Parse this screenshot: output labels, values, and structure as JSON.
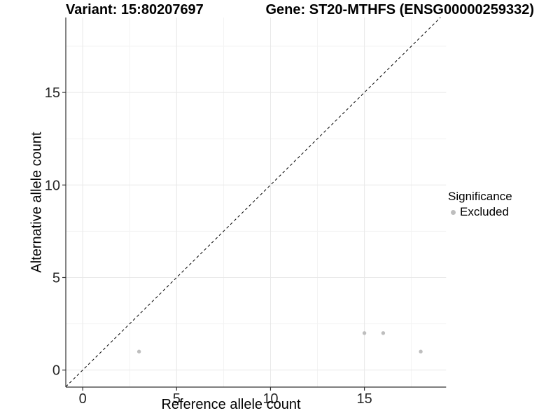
{
  "figure": {
    "title_left": "Variant: 15:80207697",
    "title_right": "Gene: ST20-MTHFS (ENSG00000259332)"
  },
  "chart_data": {
    "type": "scatter",
    "xlabel": "Reference allele count",
    "ylabel": "Alternative allele count",
    "xlim": [
      -0.9,
      19.35
    ],
    "ylim": [
      -0.92,
      19.05
    ],
    "x_ticks": [
      0,
      5,
      10,
      15
    ],
    "y_ticks": [
      0,
      5,
      10,
      15
    ],
    "x_minor_ticks": [
      2.5,
      7.5,
      12.5,
      17.5
    ],
    "y_minor_ticks": [
      2.5,
      7.5,
      12.5,
      17.5
    ],
    "grid": "major+minor",
    "identity_line": {
      "type": "y=x",
      "style": "dashed",
      "color": "#000000"
    },
    "series": [
      {
        "name": "Excluded",
        "color": "#bebebe",
        "points": [
          [
            3,
            1
          ],
          [
            15,
            2
          ],
          [
            16,
            2
          ],
          [
            18,
            1
          ]
        ]
      }
    ],
    "legend": {
      "title": "Significance",
      "position": "right",
      "entries": [
        {
          "label": "Excluded",
          "color": "#bebebe"
        }
      ]
    },
    "colors": {
      "axis_line": "#333333",
      "tick_text": "#262626",
      "grid_major": "#e8e8e8",
      "grid_minor": "#f3f3f3",
      "background": "#ffffff"
    }
  }
}
